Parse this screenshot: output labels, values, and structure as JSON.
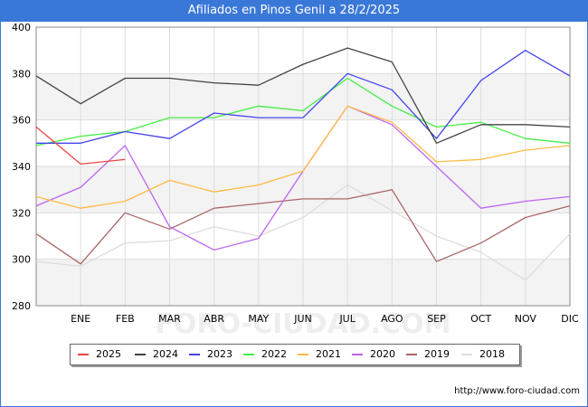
{
  "title": "Afiliados en Pinos Genil a 28/2/2025",
  "source": "http://www.foro-ciudad.com",
  "watermark": "FORO-CIUDAD.COM",
  "colors": {
    "title_bar": "#3a78d8",
    "grid": "#dddddd",
    "band": "#f3f3f3"
  },
  "chart_data": {
    "type": "line",
    "title": "Afiliados en Pinos Genil a 28/2/2025",
    "xlabel": "",
    "ylabel": "",
    "x_labels": [
      "",
      "ENE",
      "FEB",
      "MAR",
      "ABR",
      "MAY",
      "JUN",
      "JUL",
      "AGO",
      "SEP",
      "OCT",
      "NOV",
      "DIC"
    ],
    "ylim": [
      280,
      400
    ],
    "yticks": [
      280,
      300,
      320,
      340,
      360,
      380,
      400
    ],
    "grid": true,
    "legend_position": "bottom",
    "series": [
      {
        "name": "2025",
        "color": "#ee4444",
        "values": [
          357,
          341,
          343
        ]
      },
      {
        "name": "2024",
        "color": "#444444",
        "values": [
          379,
          367,
          378,
          378,
          376,
          375,
          384,
          391,
          385,
          350,
          358,
          358,
          357
        ]
      },
      {
        "name": "2023",
        "color": "#4444ee",
        "values": [
          350,
          350,
          355,
          352,
          363,
          361,
          361,
          380,
          373,
          352,
          377,
          390,
          379
        ]
      },
      {
        "name": "2022",
        "color": "#44ee44",
        "values": [
          349,
          353,
          355,
          361,
          361,
          366,
          364,
          378,
          366,
          357,
          359,
          352,
          350
        ]
      },
      {
        "name": "2021",
        "color": "#ffbb44",
        "values": [
          327,
          322,
          325,
          334,
          329,
          332,
          338,
          366,
          359,
          342,
          343,
          347,
          349
        ]
      },
      {
        "name": "2020",
        "color": "#bb66ee",
        "values": [
          323,
          331,
          349,
          314,
          304,
          309,
          338,
          366,
          358,
          340,
          322,
          325,
          327
        ]
      },
      {
        "name": "2019",
        "color": "#aa6666",
        "values": [
          311,
          298,
          320,
          313,
          322,
          324,
          326,
          326,
          330,
          299,
          307,
          318,
          323
        ]
      },
      {
        "name": "2018",
        "color": "#dddddd",
        "values": [
          299,
          297,
          307,
          308,
          314,
          310,
          318,
          332,
          321,
          310,
          303,
          291,
          311
        ]
      }
    ]
  }
}
